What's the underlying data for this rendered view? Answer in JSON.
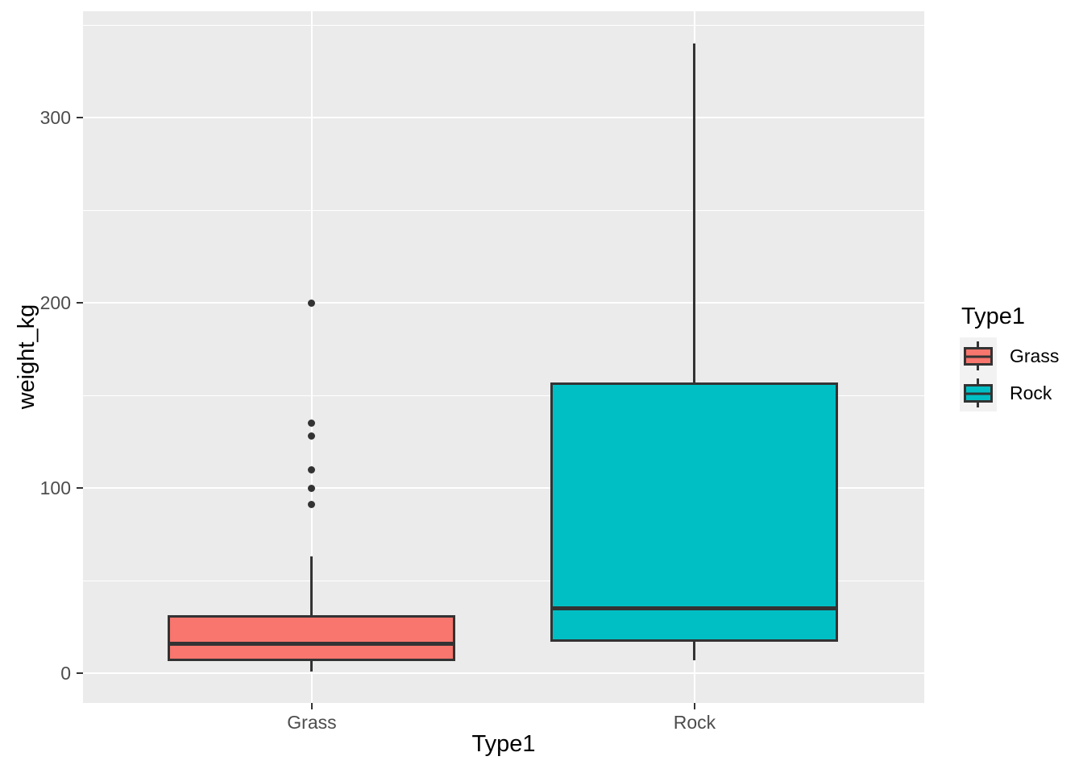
{
  "chart_data": {
    "type": "boxplot",
    "title": "",
    "xlabel": "Type1",
    "ylabel": "weight_kg",
    "categories": [
      "Grass",
      "Rock"
    ],
    "y_major_ticks": [
      0,
      100,
      200,
      300
    ],
    "y_minor_gridlines": [
      50,
      150,
      250,
      350
    ],
    "ylim": [
      -16,
      357.5
    ],
    "grid": "white major and minor horizontal gridlines, vertical major gridline at each category, gray panel",
    "legend_position": "right",
    "series": [
      {
        "name": "Grass",
        "fill": "#F8766D",
        "q1": 6.5,
        "median": 16,
        "q3": 31.5,
        "whisker_low": 1,
        "whisker_high": 63,
        "outliers": [
          91,
          100,
          110,
          128,
          135,
          200
        ]
      },
      {
        "name": "Rock",
        "fill": "#00BFC4",
        "q1": 17,
        "median": 35,
        "q3": 157,
        "whisker_low": 7,
        "whisker_high": 340,
        "outliers": []
      }
    ],
    "legend": {
      "title": "Type1",
      "entries": [
        {
          "label": "Grass",
          "color": "#F8766D"
        },
        {
          "label": "Rock",
          "color": "#00BFC4"
        }
      ]
    }
  },
  "colors": {
    "panel_background": "#EBEBEB",
    "gridline": "#FFFFFF",
    "box_outline": "#333333",
    "tick_label": "#4D4D4D",
    "axis_title": "#000000",
    "legend_key_background": "#F2F2F2",
    "page_background": "#FFFFFF"
  }
}
